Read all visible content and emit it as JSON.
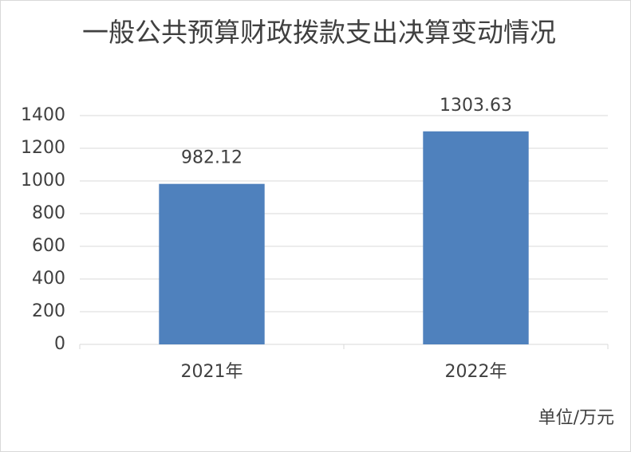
{
  "chart_data": {
    "type": "bar",
    "title": "一般公共预算财政拨款支出决算变动情况",
    "categories": [
      "2021年",
      "2022年"
    ],
    "values": [
      982.12,
      1303.63
    ],
    "color": "#4f81bd",
    "ylim": [
      0,
      1400
    ],
    "yticks": [
      0,
      200,
      400,
      600,
      800,
      1000,
      1200,
      1400
    ],
    "grid": true,
    "annotation": "单位/万元"
  }
}
